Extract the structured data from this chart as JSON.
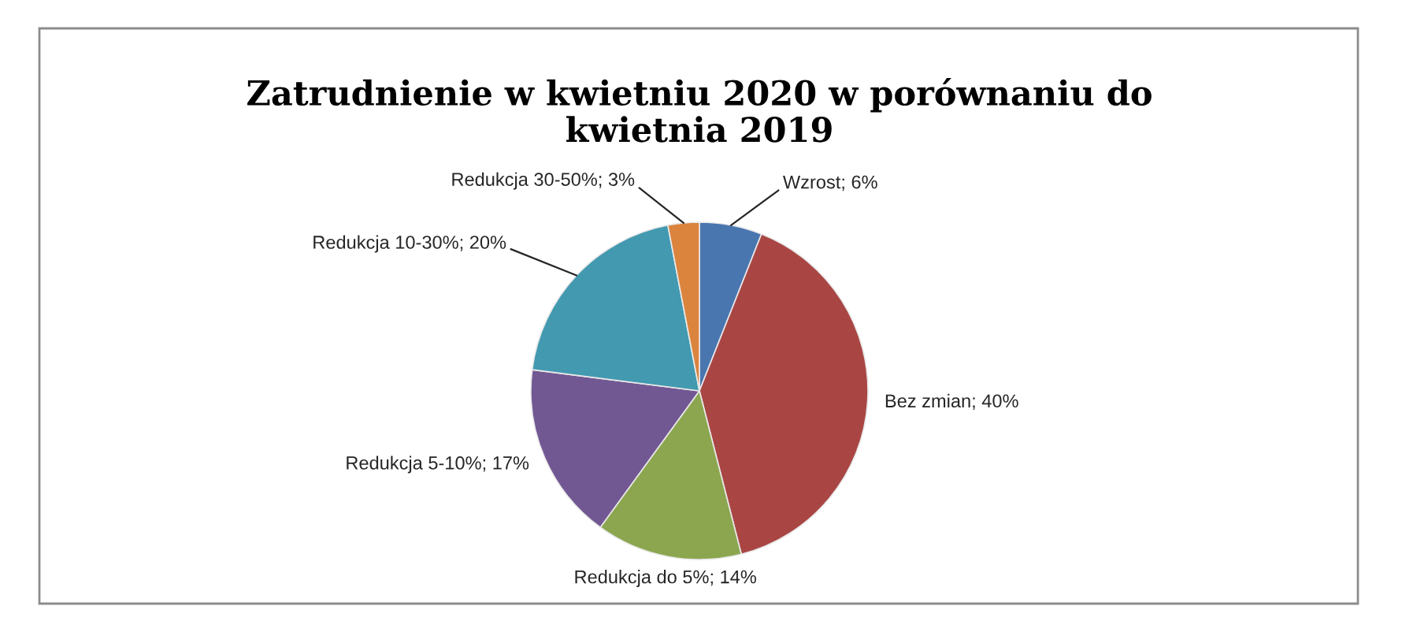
{
  "chart_data": {
    "type": "pie",
    "title": "Zatrudnienie w kwietniu 2020 w porównaniu do\nkwietnia 2019",
    "categories": [
      "Wzrost",
      "Bez zmian",
      "Redukcja do 5%",
      "Redukcja 5-10%",
      "Redukcja 10-30%",
      "Redukcja 30-50%"
    ],
    "values": [
      6,
      40,
      14,
      17,
      20,
      3
    ],
    "colors": [
      "#4a76b0",
      "#a94644",
      "#8ca64f",
      "#725893",
      "#4299b0",
      "#db843d"
    ],
    "value_labels": [
      "6%",
      "40%",
      "14%",
      "17%",
      "20%",
      "3%"
    ]
  }
}
